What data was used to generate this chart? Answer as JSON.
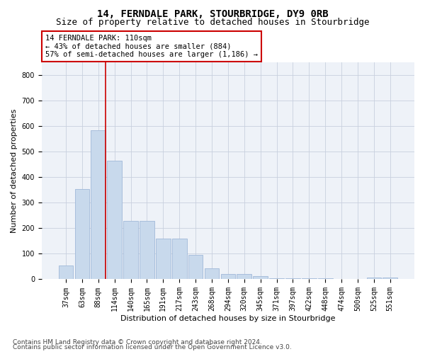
{
  "title": "14, FERNDALE PARK, STOURBRIDGE, DY9 0RB",
  "subtitle": "Size of property relative to detached houses in Stourbridge",
  "xlabel": "Distribution of detached houses by size in Stourbridge",
  "ylabel": "Number of detached properties",
  "categories": [
    "37sqm",
    "63sqm",
    "88sqm",
    "114sqm",
    "140sqm",
    "165sqm",
    "191sqm",
    "217sqm",
    "243sqm",
    "268sqm",
    "294sqm",
    "320sqm",
    "345sqm",
    "371sqm",
    "397sqm",
    "422sqm",
    "448sqm",
    "474sqm",
    "500sqm",
    "525sqm",
    "551sqm"
  ],
  "values": [
    55,
    355,
    585,
    465,
    230,
    230,
    160,
    160,
    95,
    42,
    20,
    20,
    12,
    5,
    3,
    3,
    3,
    1,
    1,
    8,
    8
  ],
  "bar_color": "#c8d9ec",
  "bar_edge_color": "#a0b8d8",
  "vline_index": 2,
  "vline_color": "#cc0000",
  "annotation_text": "14 FERNDALE PARK: 110sqm\n← 43% of detached houses are smaller (884)\n57% of semi-detached houses are larger (1,186) →",
  "annotation_box_color": "#ffffff",
  "annotation_box_edge": "#cc0000",
  "ylim": [
    0,
    850
  ],
  "yticks": [
    0,
    100,
    200,
    300,
    400,
    500,
    600,
    700,
    800
  ],
  "grid_color": "#c8d0de",
  "background_color": "#eef2f8",
  "footer_line1": "Contains HM Land Registry data © Crown copyright and database right 2024.",
  "footer_line2": "Contains public sector information licensed under the Open Government Licence v3.0.",
  "title_fontsize": 10,
  "subtitle_fontsize": 9,
  "axis_label_fontsize": 8,
  "tick_fontsize": 7,
  "annotation_fontsize": 7.5,
  "footer_fontsize": 6.5
}
